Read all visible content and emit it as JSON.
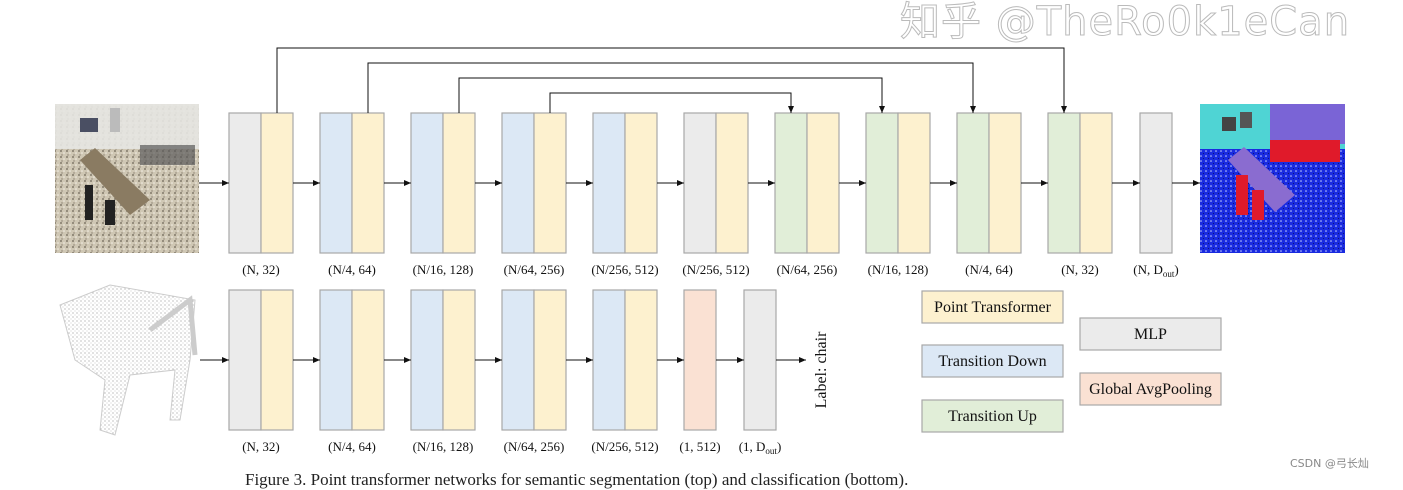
{
  "colors": {
    "point_transformer": "#fdf1cf",
    "transition_down": "#dce8f5",
    "transition_up": "#e1eed8",
    "mlp": "#ebebeb",
    "global_avgpooling": "#fae1d3",
    "border": "#a8a8a8"
  },
  "top_row": {
    "input_image": "indoor-scene-point-cloud",
    "output_image": "segmented-scene-point-cloud",
    "stages": [
      {
        "types": [
          "mlp",
          "point_transformer"
        ],
        "label": "(N, 32)"
      },
      {
        "types": [
          "transition_down",
          "point_transformer"
        ],
        "label": "(N/4, 64)"
      },
      {
        "types": [
          "transition_down",
          "point_transformer"
        ],
        "label": "(N/16, 128)"
      },
      {
        "types": [
          "transition_down",
          "point_transformer"
        ],
        "label": "(N/64, 256)"
      },
      {
        "types": [
          "transition_down",
          "point_transformer"
        ],
        "label": "(N/256, 512)"
      },
      {
        "types": [
          "mlp",
          "point_transformer"
        ],
        "label": "(N/256, 512)"
      },
      {
        "types": [
          "transition_up",
          "point_transformer"
        ],
        "label": "(N/64, 256)"
      },
      {
        "types": [
          "transition_up",
          "point_transformer"
        ],
        "label": "(N/16, 128)"
      },
      {
        "types": [
          "transition_up",
          "point_transformer"
        ],
        "label": "(N/4, 64)"
      },
      {
        "types": [
          "transition_up",
          "point_transformer"
        ],
        "label": "(N, 32)"
      },
      {
        "types": [
          "mlp"
        ],
        "label_main": "(N, D",
        "label_sub": "out",
        "label_end": ")"
      }
    ],
    "skip_connections": [
      [
        0,
        9
      ],
      [
        1,
        8
      ],
      [
        2,
        7
      ],
      [
        3,
        6
      ]
    ]
  },
  "bottom_row": {
    "input_image": "chair-point-cloud",
    "stages": [
      {
        "types": [
          "mlp",
          "point_transformer"
        ],
        "label": "(N, 32)"
      },
      {
        "types": [
          "transition_down",
          "point_transformer"
        ],
        "label": "(N/4, 64)"
      },
      {
        "types": [
          "transition_down",
          "point_transformer"
        ],
        "label": "(N/16, 128)"
      },
      {
        "types": [
          "transition_down",
          "point_transformer"
        ],
        "label": "(N/64, 256)"
      },
      {
        "types": [
          "transition_down",
          "point_transformer"
        ],
        "label": "(N/256, 512)"
      },
      {
        "types": [
          "global_avgpooling"
        ],
        "label": "(1, 512)"
      },
      {
        "types": [
          "mlp"
        ],
        "label_main": "(1, D",
        "label_sub": "out",
        "label_end": ")"
      }
    ],
    "output_label": "Label: chair"
  },
  "legend": [
    {
      "type": "point_transformer",
      "label": "Point Transformer"
    },
    {
      "type": "mlp",
      "label": "MLP"
    },
    {
      "type": "transition_down",
      "label": "Transition Down"
    },
    {
      "type": "global_avgpooling",
      "label": "Global AvgPooling"
    },
    {
      "type": "transition_up",
      "label": "Transition Up"
    }
  ],
  "watermark": "知乎 @TheRo0k1eCan",
  "csdn_watermark": "CSDN @弓长灿",
  "caption": "Figure 3. Point transformer networks for semantic segmentation (top) and classification (bottom)."
}
